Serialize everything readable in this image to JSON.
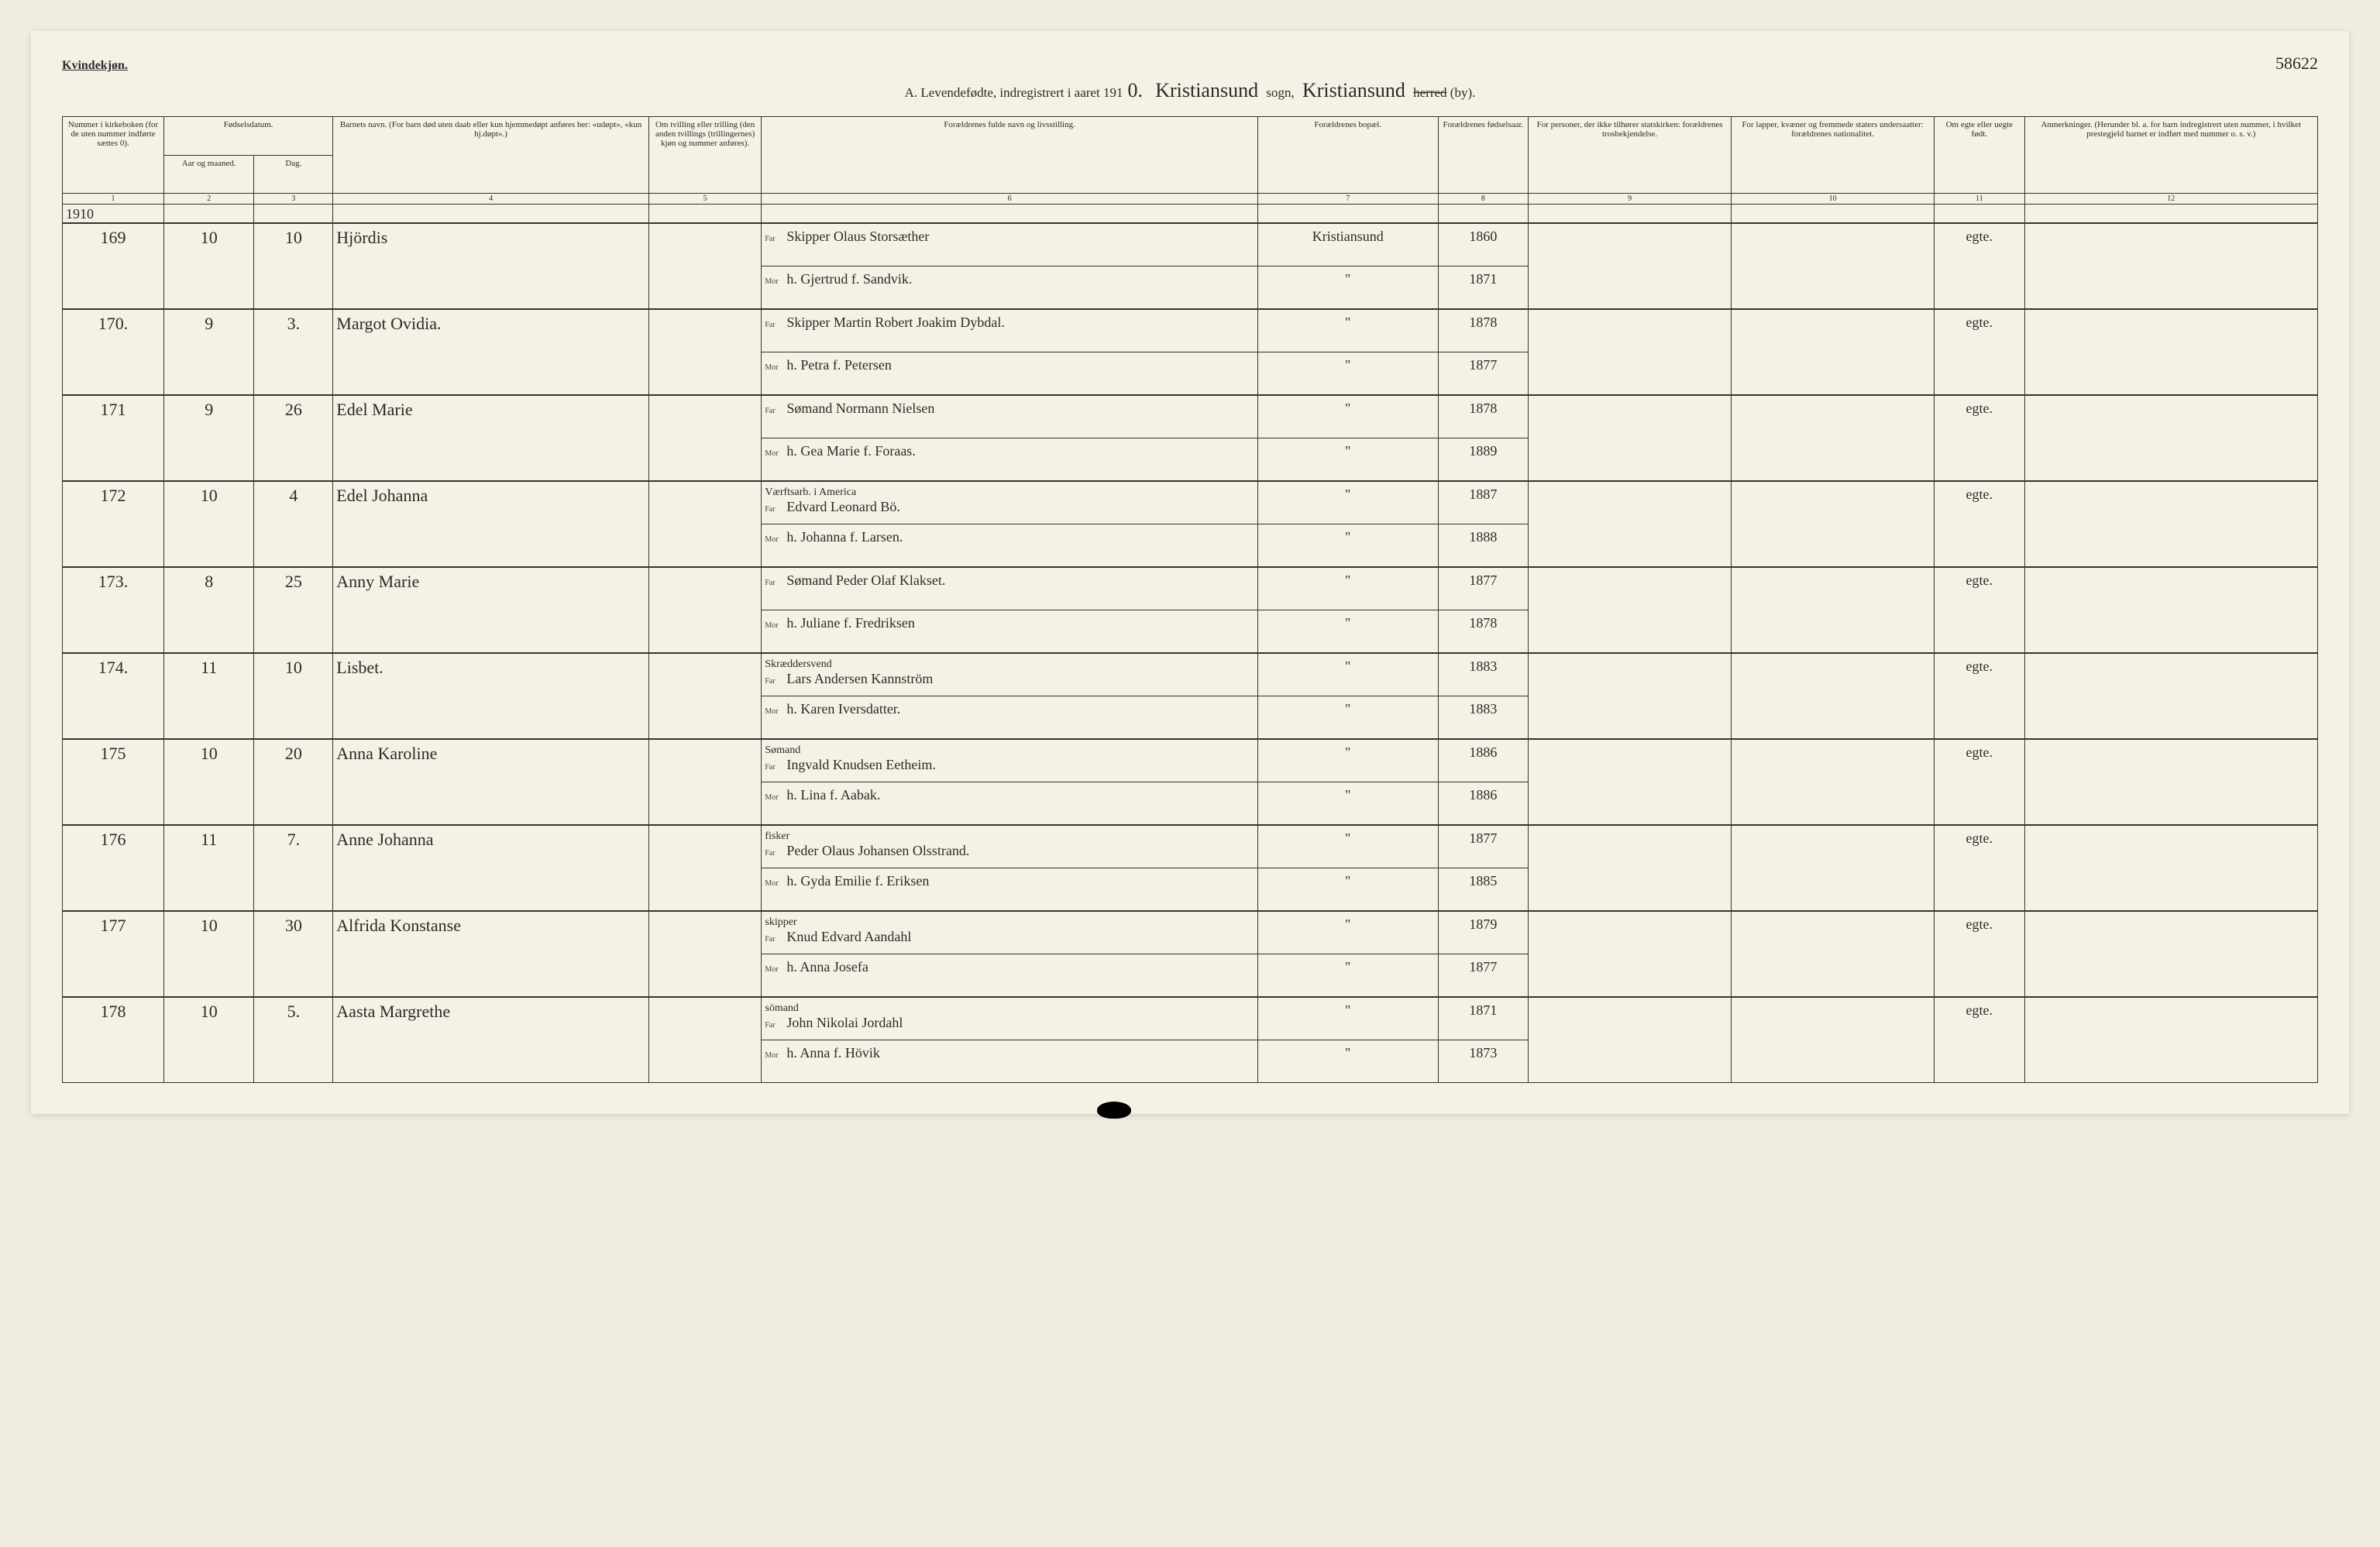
{
  "header": {
    "gender": "Kvindekjøn.",
    "page_number": "58622",
    "title_prefix": "A.  Levendefødte, indregistrert i aaret 191",
    "year_suffix": "0.",
    "sogn_hand": "Kristiansund",
    "sogn_label": "sogn,",
    "herred_hand": "Kristiansund",
    "herred_struck": "herred",
    "herred_suffix": "(by)."
  },
  "columns": {
    "c1": "Nummer i kirke­boken (for de uten nummer indførte sættes 0).",
    "c2a": "Fødselsdatum.",
    "c2_sub1": "Aar og maaned.",
    "c2_sub2": "Dag.",
    "c4": "Barnets navn.\n(For barn død uten daab eller kun hjemmedøpt anføres her: «udøpt», «kun hj.døpt».)",
    "c5": "Om tvilling eller trilling (den anden tvillings (trillingernes) kjøn og nummer anføres).",
    "c6": "Forældrenes fulde navn og livsstilling.",
    "c7": "Forældrenes bopæl.",
    "c8": "For­ældrenes fødsels­aar.",
    "c9": "For personer, der ikke tilhører statskirken: forældrenes trosbekjendelse.",
    "c10": "For lapper, kvæner og fremmede staters undersaatter: forældrenes nationalitet.",
    "c11": "Om egte eller uegte født.",
    "c12": "Anmerkninger.\n(Herunder bl. a. for barn indregistrert uten nummer, i hvilket prestegjeld barnet er indført med nummer o. s. v.)"
  },
  "colnums": [
    "1",
    "2",
    "3",
    "4",
    "5",
    "6",
    "7",
    "8",
    "9",
    "10",
    "11",
    "12"
  ],
  "pre_row_year": "1910",
  "rows": [
    {
      "num": "169",
      "month": "10",
      "day": "10",
      "child": "Hjördis",
      "far": "Skipper Olaus Storsæther",
      "mor": "h. Gjertrud f. Sandvik.",
      "bopel_far": "Kristiansund",
      "bopel_mor": "\"",
      "aar_far": "1860",
      "aar_mor": "1871",
      "egte": "egte."
    },
    {
      "num": "170.",
      "month": "9",
      "day": "3.",
      "child": "Margot Ovidia.",
      "far": "Skipper Martin Robert Joakim Dybdal.",
      "mor": "h. Petra f. Petersen",
      "bopel_far": "\"",
      "bopel_mor": "\"",
      "aar_far": "1878",
      "aar_mor": "1877",
      "egte": "egte."
    },
    {
      "num": "171",
      "month": "9",
      "day": "26",
      "child": "Edel Marie",
      "far": "Sømand Normann Nielsen",
      "mor": "h. Gea Marie f. Foraas.",
      "bopel_far": "\"",
      "bopel_mor": "\"",
      "aar_far": "1878",
      "aar_mor": "1889",
      "egte": "egte."
    },
    {
      "num": "172",
      "month": "10",
      "day": "4",
      "child": "Edel Johanna",
      "far_note": "Værftsarb. i America",
      "far": "Edvard Leonard Bö.",
      "mor": "h. Johanna f. Larsen.",
      "bopel_far": "\"",
      "bopel_mor": "\"",
      "aar_far": "1887",
      "aar_mor": "1888",
      "egte": "egte."
    },
    {
      "num": "173.",
      "month": "8",
      "day": "25",
      "child": "Anny Marie",
      "far": "Sømand Peder Olaf Klakset.",
      "mor": "h. Juliane f. Fredriksen",
      "bopel_far": "\"",
      "bopel_mor": "\"",
      "aar_far": "1877",
      "aar_mor": "1878",
      "egte": "egte."
    },
    {
      "num": "174.",
      "month": "11",
      "day": "10",
      "child": "Lisbet.",
      "far_note": "Skræddersvend",
      "far": "Lars Andersen Kannström",
      "mor": "h. Karen Iversdatter.",
      "bopel_far": "\"",
      "bopel_mor": "\"",
      "aar_far": "1883",
      "aar_mor": "1883",
      "egte": "egte."
    },
    {
      "num": "175",
      "month": "10",
      "day": "20",
      "child": "Anna Karoline",
      "far_note": "Sømand",
      "far": "Ingvald Knudsen Eetheim.",
      "mor": "h. Lina f. Aabak.",
      "bopel_far": "\"",
      "bopel_mor": "\"",
      "aar_far": "1886",
      "aar_mor": "1886",
      "egte": "egte."
    },
    {
      "num": "176",
      "month": "11",
      "day": "7.",
      "child": "Anne Johanna",
      "far_note": "fisker",
      "far": "Peder Olaus Johansen Olsstrand.",
      "mor": "h. Gyda Emilie f. Eriksen",
      "bopel_far": "\"",
      "bopel_mor": "\"",
      "aar_far": "1877",
      "aar_mor": "1885",
      "egte": "egte."
    },
    {
      "num": "177",
      "month": "10",
      "day": "30",
      "child": "Alfrida Konstanse",
      "far_note": "skipper",
      "far": "Knud Edvard Aandahl",
      "mor": "h. Anna Josefa",
      "bopel_far": "\"",
      "bopel_mor": "\"",
      "aar_far": "1879",
      "aar_mor": "1877",
      "egte": "egte."
    },
    {
      "num": "178",
      "month": "10",
      "day": "5.",
      "child": "Aasta Margrethe",
      "far_note": "sömand",
      "far": "John Nikolai Jordahl",
      "mor": "h. Anna f. Hövik",
      "bopel_far": "\"",
      "bopel_mor": "\"",
      "aar_far": "1871",
      "aar_mor": "1873",
      "egte": "egte."
    }
  ],
  "rel_labels": {
    "far": "Far",
    "mor": "Mor"
  },
  "styling": {
    "background_color": "#f5f2e5",
    "border_color": "#333333",
    "handwriting_color": "#2a2a2a",
    "header_fontsize_pt": 11,
    "body_hand_fontsize_pt": 22
  }
}
